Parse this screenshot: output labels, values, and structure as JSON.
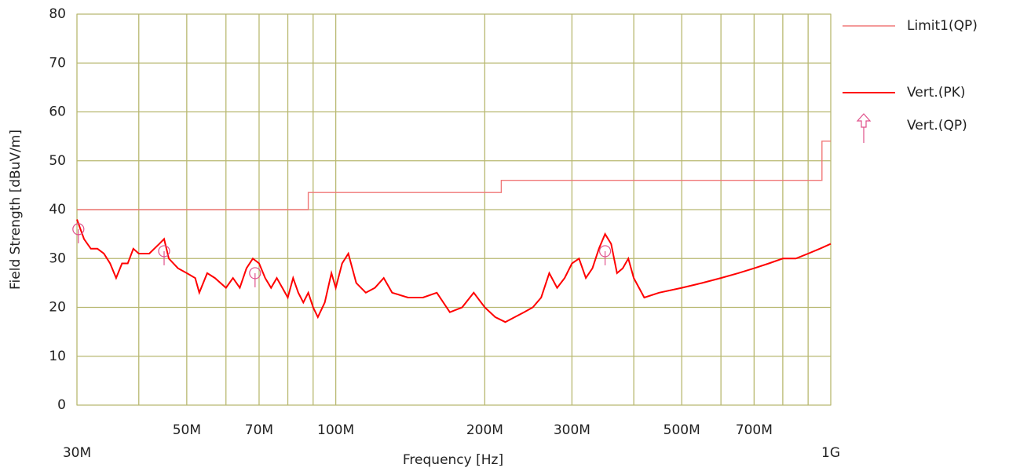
{
  "chart_data": {
    "type": "line",
    "xlabel": "Frequency [Hz]",
    "ylabel": "Field Strength [dBuV/m]",
    "xscale": "log",
    "xlim": [
      30000000.0,
      1000000000.0
    ],
    "ylim": [
      0,
      80
    ],
    "yticks": [
      0,
      10,
      20,
      30,
      40,
      50,
      60,
      70,
      80
    ],
    "xticks": [
      {
        "value": 30000000.0,
        "label": "30M"
      },
      {
        "value": 50000000.0,
        "label": "50M"
      },
      {
        "value": 70000000.0,
        "label": "70M"
      },
      {
        "value": 100000000.0,
        "label": "100M"
      },
      {
        "value": 200000000.0,
        "label": "200M"
      },
      {
        "value": 300000000.0,
        "label": "300M"
      },
      {
        "value": 500000000.0,
        "label": "500M"
      },
      {
        "value": 700000000.0,
        "label": "700M"
      },
      {
        "value": 1000000000.0,
        "label": "1G"
      }
    ],
    "xminorticks": [
      40000000.0,
      60000000.0,
      80000000.0,
      90000000.0,
      400000000.0,
      600000000.0,
      800000000.0,
      900000000.0
    ],
    "grid": true,
    "legend": "right",
    "series": [
      {
        "name": "Limit1(QP)",
        "color": "#f07878",
        "mode": "lines",
        "x": [
          30000000.0,
          88000000.0,
          88000000.0,
          216000000.0,
          216000000.0,
          960000000.0,
          960000000.0,
          1000000000.0
        ],
        "values": [
          40,
          40,
          43.5,
          43.5,
          46,
          46,
          54,
          54
        ]
      },
      {
        "name": "Vert.(PK)",
        "color": "#ff0000",
        "mode": "lines",
        "x": [
          30000000.0,
          31000000.0,
          32000000.0,
          33000000.0,
          34000000.0,
          35000000.0,
          36000000.0,
          37000000.0,
          38000000.0,
          39000000.0,
          40000000.0,
          42000000.0,
          44000000.0,
          45000000.0,
          46000000.0,
          48000000.0,
          50000000.0,
          52000000.0,
          53000000.0,
          55000000.0,
          57000000.0,
          60000000.0,
          62000000.0,
          64000000.0,
          66000000.0,
          68000000.0,
          70000000.0,
          72000000.0,
          74000000.0,
          76000000.0,
          78000000.0,
          80000000.0,
          82000000.0,
          84000000.0,
          86000000.0,
          88000000.0,
          90000000.0,
          92000000.0,
          95000000.0,
          98000000.0,
          100000000.0,
          103000000.0,
          106000000.0,
          110000000.0,
          115000000.0,
          120000000.0,
          125000000.0,
          130000000.0,
          140000000.0,
          150000000.0,
          160000000.0,
          170000000.0,
          180000000.0,
          190000000.0,
          200000000.0,
          210000000.0,
          220000000.0,
          230000000.0,
          240000000.0,
          250000000.0,
          260000000.0,
          270000000.0,
          280000000.0,
          290000000.0,
          300000000.0,
          310000000.0,
          320000000.0,
          330000000.0,
          340000000.0,
          350000000.0,
          360000000.0,
          370000000.0,
          380000000.0,
          390000000.0,
          400000000.0,
          420000000.0,
          450000000.0,
          500000000.0,
          550000000.0,
          600000000.0,
          650000000.0,
          700000000.0,
          750000000.0,
          800000000.0,
          850000000.0,
          900000000.0,
          950000000.0,
          1000000000.0
        ],
        "values": [
          38,
          34,
          32,
          32,
          31,
          29,
          26,
          29,
          29,
          32,
          31,
          31,
          33,
          34,
          30,
          28,
          27,
          26,
          23,
          27,
          26,
          24,
          26,
          24,
          28,
          30,
          29,
          26,
          24,
          26,
          24,
          22,
          26,
          23,
          21,
          23,
          20,
          18,
          21,
          27,
          24,
          29,
          31,
          25,
          23,
          24,
          26,
          23,
          22,
          22,
          23,
          19,
          20,
          23,
          20,
          18,
          17,
          18,
          19,
          20,
          22,
          27,
          24,
          26,
          29,
          30,
          26,
          28,
          32,
          35,
          33,
          27,
          28,
          30,
          26,
          22,
          23,
          24,
          25,
          26,
          27,
          28,
          29,
          30,
          30,
          31,
          32,
          33
        ]
      },
      {
        "name": "Vert.(QP)",
        "color": "#e0508a",
        "mode": "markers",
        "x": [
          30200000.0,
          45000000.0,
          68700000.0,
          350000000.0
        ],
        "values": [
          36,
          31.5,
          27,
          31.5
        ]
      }
    ]
  }
}
